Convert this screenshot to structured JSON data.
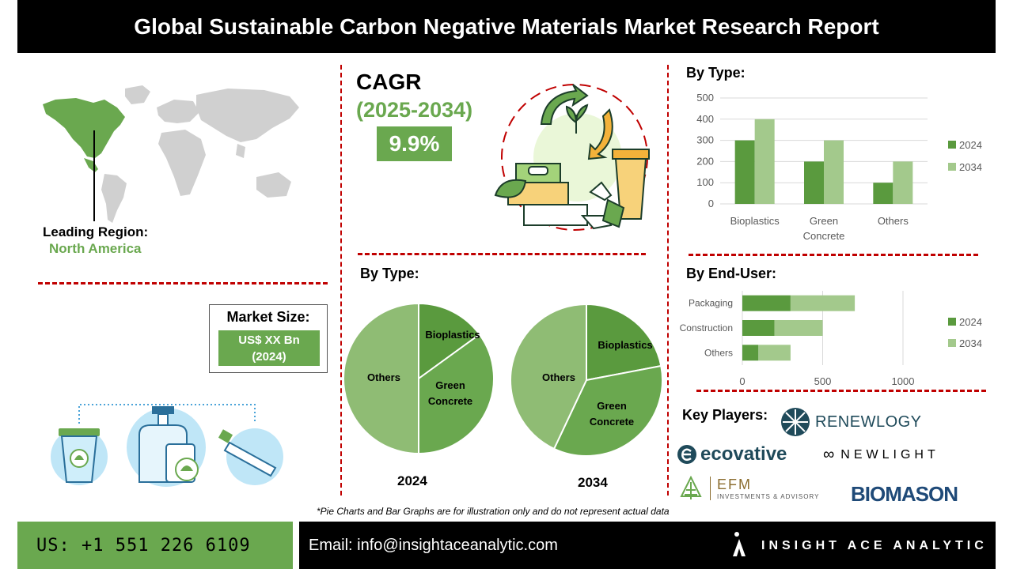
{
  "header": {
    "title": "Global Sustainable Carbon Negative Materials Market Research Report"
  },
  "region": {
    "label": "Leading Region:",
    "value": "North America"
  },
  "cagr": {
    "label": "CAGR",
    "period": "(2025-2034)",
    "value": "9.9%"
  },
  "market_size": {
    "label": "Market Size:",
    "line1": "US$ XX Bn",
    "line2": "(2024)"
  },
  "pie_section": {
    "title": "By Type:",
    "year_a": "2024",
    "year_b": "2034"
  },
  "bar_type": {
    "title": "By Type:"
  },
  "bar_end": {
    "title": "By End-User:"
  },
  "key_players": {
    "title": "Key Players:",
    "renewlogy": "RENEWLOGY",
    "ecovative": "ecovative",
    "newlight": "NEWLIGHT",
    "efm": "EFM",
    "efm_sub": "INVESTMENTS & ADVISORY",
    "biomason": "BIOMASON"
  },
  "footnote": "*Pie Charts and Bar Graphs are for illustration only and do not represent actual data",
  "footer": {
    "phone": "US: +1 551 226 6109",
    "email": "Email: info@insightaceanalytic.com",
    "brand": "INSIGHT ACE ANALYTIC"
  },
  "colors": {
    "accent": "#6aa84f",
    "dark_green": "#5a9a3e",
    "light_green": "#a3c98c",
    "pie_others": "#8fbc74",
    "red_divider": "#c00000"
  },
  "chart_data": [
    {
      "type": "bar",
      "title": "By Type:",
      "categories": [
        "Bioplastics",
        "Green Concrete",
        "Others"
      ],
      "series": [
        {
          "name": "2024",
          "values": [
            300,
            200,
            100
          ]
        },
        {
          "name": "2034",
          "values": [
            400,
            300,
            200
          ]
        }
      ],
      "ylim": [
        0,
        500
      ],
      "yticks": [
        "0",
        "100",
        "200",
        "300",
        "400",
        "500"
      ],
      "grid": true,
      "legend": "right"
    },
    {
      "type": "bar",
      "orientation": "horizontal",
      "stacked": true,
      "title": "By End-User:",
      "categories": [
        "Packaging",
        "Construction",
        "Others"
      ],
      "series": [
        {
          "name": "2024",
          "values": [
            300,
            200,
            100
          ]
        },
        {
          "name": "2034",
          "values": [
            400,
            300,
            200
          ]
        }
      ],
      "xlim": [
        0,
        1000
      ],
      "xticks": [
        "0",
        "500",
        "1000"
      ],
      "grid": true,
      "legend": "right"
    },
    {
      "type": "pie",
      "title": "2024",
      "labels": [
        "Bioplastics",
        "Green Concrete",
        "Others"
      ],
      "values": [
        15,
        35,
        50
      ]
    },
    {
      "type": "pie",
      "title": "2034",
      "labels": [
        "Bioplastics",
        "Green Concrete",
        "Others"
      ],
      "values": [
        22,
        35,
        43
      ]
    }
  ]
}
